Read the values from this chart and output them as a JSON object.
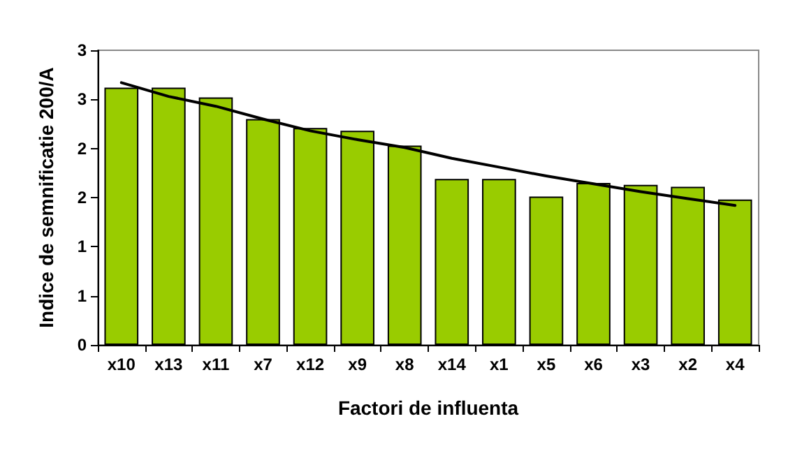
{
  "chart_data": {
    "type": "bar",
    "xlabel": "Factori de influenta",
    "ylabel": "Indice de semnificatie 200/A",
    "categories": [
      "x10",
      "x13",
      "x11",
      "x7",
      "x12",
      "x9",
      "x8",
      "x14",
      "x1",
      "x5",
      "x6",
      "x3",
      "x2",
      "x4"
    ],
    "series": [
      {
        "color": "#99cc00",
        "values": [
          2.62,
          2.62,
          2.52,
          2.3,
          2.21,
          2.18,
          2.03,
          1.69,
          1.69,
          1.51,
          1.65,
          1.63,
          1.61,
          1.48
        ]
      },
      {
        "type": "line",
        "color": "#000000",
        "x": [
          "x10",
          "x13",
          "x11",
          "x7",
          "x12",
          "x9",
          "x8",
          "x14",
          "x1",
          "x5",
          "x6",
          "x3",
          "x2",
          "x4"
        ],
        "values": [
          2.67,
          2.53,
          2.43,
          2.3,
          2.18,
          2.09,
          2.01,
          1.9,
          1.81,
          1.72,
          1.64,
          1.56,
          1.49,
          1.42
        ]
      }
    ],
    "ylim": [
      0,
      3
    ],
    "yticks": [
      0,
      {
        "value": 0.5,
        "label": "1"
      },
      1,
      {
        "value": 1.5,
        "label": "2"
      },
      2,
      {
        "value": 2.5,
        "label": "3"
      },
      3
    ],
    "grid": false,
    "marker": "none",
    "line_style": "solid"
  }
}
